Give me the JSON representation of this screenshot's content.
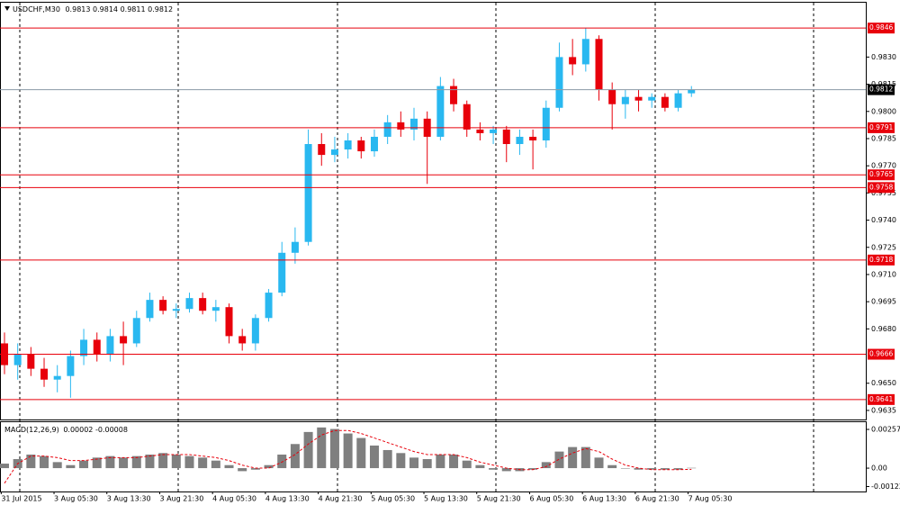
{
  "chart_data": [
    {
      "type": "candlestick",
      "symbol": "USDCHF,M30",
      "header_values": [
        0.9813,
        0.9814,
        0.9811,
        0.9812
      ],
      "bull_color": "#29b8f0",
      "bear_color": "#e8000b",
      "open": [
        0.9672,
        0.966,
        0.9666,
        0.9658,
        0.9652,
        0.9654,
        0.9665,
        0.9674,
        0.9666,
        0.9676,
        0.9672,
        0.9686,
        0.9696,
        0.969,
        0.9691,
        0.9697,
        0.969,
        0.9692,
        0.9676,
        0.9672,
        0.9686,
        0.97,
        0.9722,
        0.9728,
        0.9782,
        0.9776,
        0.9779,
        0.9784,
        0.9778,
        0.9786,
        0.9794,
        0.979,
        0.9796,
        0.9786,
        0.9814,
        0.9804,
        0.979,
        0.9788,
        0.979,
        0.9782,
        0.9786,
        0.9784,
        0.9802,
        0.983,
        0.9826,
        0.984,
        0.9812,
        0.9804,
        0.9808,
        0.9806,
        0.9808,
        0.9802,
        0.981
      ],
      "high": [
        0.9678,
        0.9672,
        0.967,
        0.9664,
        0.966,
        0.9668,
        0.968,
        0.9678,
        0.968,
        0.9684,
        0.969,
        0.97,
        0.9698,
        0.9694,
        0.97,
        0.97,
        0.9696,
        0.9694,
        0.968,
        0.9688,
        0.9702,
        0.9728,
        0.9736,
        0.979,
        0.9788,
        0.9786,
        0.9788,
        0.9786,
        0.979,
        0.9798,
        0.98,
        0.9802,
        0.98,
        0.9819,
        0.9818,
        0.9806,
        0.9794,
        0.9792,
        0.9792,
        0.979,
        0.979,
        0.9806,
        0.9838,
        0.984,
        0.9846,
        0.9842,
        0.9816,
        0.9812,
        0.9812,
        0.981,
        0.981,
        0.9812,
        0.9814
      ],
      "low": [
        0.9655,
        0.9652,
        0.9654,
        0.9648,
        0.9645,
        0.9642,
        0.966,
        0.9662,
        0.9662,
        0.966,
        0.967,
        0.9684,
        0.9688,
        0.9686,
        0.9689,
        0.9688,
        0.9684,
        0.9672,
        0.9668,
        0.9668,
        0.9684,
        0.9698,
        0.9716,
        0.9726,
        0.977,
        0.9772,
        0.9774,
        0.9774,
        0.9775,
        0.9782,
        0.9786,
        0.9784,
        0.976,
        0.9784,
        0.98,
        0.9786,
        0.9784,
        0.9782,
        0.9772,
        0.9776,
        0.9768,
        0.978,
        0.98,
        0.982,
        0.9822,
        0.9806,
        0.979,
        0.9796,
        0.98,
        0.9802,
        0.98,
        0.98,
        0.9808
      ],
      "close": [
        0.966,
        0.9666,
        0.9658,
        0.9652,
        0.9654,
        0.9665,
        0.9674,
        0.9666,
        0.9676,
        0.9672,
        0.9686,
        0.9696,
        0.969,
        0.9691,
        0.9697,
        0.969,
        0.9692,
        0.9676,
        0.9672,
        0.9686,
        0.97,
        0.9722,
        0.9728,
        0.9782,
        0.9776,
        0.9779,
        0.9784,
        0.9778,
        0.9786,
        0.9794,
        0.979,
        0.9796,
        0.9786,
        0.9814,
        0.9804,
        0.979,
        0.9788,
        0.979,
        0.9782,
        0.9786,
        0.9784,
        0.9802,
        0.983,
        0.9826,
        0.984,
        0.9812,
        0.9804,
        0.9808,
        0.9806,
        0.9808,
        0.9802,
        0.981,
        0.9812
      ],
      "levels": [
        0.9846,
        0.9791,
        0.9765,
        0.9758,
        0.9718,
        0.9666,
        0.9641
      ],
      "level_color": "#e8000b",
      "current_price": 0.9812,
      "ylim": [
        0.963,
        0.986
      ],
      "yticks": [
        {
          "value": 0.983,
          "label": "0.9830"
        },
        {
          "value": 0.9815,
          "label": "0.9815"
        },
        {
          "value": 0.98,
          "label": "0.9800"
        },
        {
          "value": 0.9785,
          "label": "0.9785"
        },
        {
          "value": 0.977,
          "label": "0.9770"
        },
        {
          "value": 0.9755,
          "label": "0.9755"
        },
        {
          "value": 0.974,
          "label": "0.9740"
        },
        {
          "value": 0.9725,
          "label": "0.9725"
        },
        {
          "value": 0.971,
          "label": "0.9710"
        },
        {
          "value": 0.9695,
          "label": "0.9695"
        },
        {
          "value": 0.968,
          "label": "0.9680"
        },
        {
          "value": 0.965,
          "label": "0.9650"
        },
        {
          "value": 0.9635,
          "label": "0.9635"
        }
      ],
      "xlim": [
        -0.34,
        65.2
      ],
      "xticks": [
        {
          "value": -0.25,
          "label": "31 Jul 2015"
        },
        {
          "value": 3.75,
          "label": "3 Aug 05:30"
        },
        {
          "value": 7.75,
          "label": "3 Aug 13:30"
        },
        {
          "value": 11.75,
          "label": "3 Aug 21:30"
        },
        {
          "value": 15.75,
          "label": "4 Aug 05:30"
        },
        {
          "value": 19.75,
          "label": "4 Aug 13:30"
        },
        {
          "value": 23.75,
          "label": "4 Aug 21:30"
        },
        {
          "value": 27.75,
          "label": "5 Aug 05:30"
        },
        {
          "value": 31.75,
          "label": "5 Aug 13:30"
        },
        {
          "value": 35.75,
          "label": "5 Aug 21:30"
        },
        {
          "value": 39.75,
          "label": "6 Aug 05:30"
        },
        {
          "value": 43.75,
          "label": "6 Aug 13:30"
        },
        {
          "value": 47.75,
          "label": "6 Aug 21:30"
        },
        {
          "value": 51.75,
          "label": "7 Aug 05:30"
        }
      ]
    },
    {
      "type": "macd",
      "name": "MACD(12,26,9)",
      "header_values": [
        2e-05,
        -8e-05
      ],
      "histogram": {
        "color": "#7f7f7f",
        "values": [
          0.0003,
          0.0006,
          0.0009,
          0.0008,
          0.0004,
          0.0002,
          0.0005,
          0.0007,
          0.0008,
          0.0007,
          0.0008,
          0.0009,
          0.001,
          0.0009,
          0.0008,
          0.0007,
          0.0005,
          0.0002,
          -0.0002,
          -0.0001,
          0.0002,
          0.0009,
          0.0016,
          0.0024,
          0.0027,
          0.0026,
          0.0023,
          0.002,
          0.0015,
          0.0012,
          0.001,
          0.0007,
          0.0006,
          0.0009,
          0.0009,
          0.0005,
          0.0002,
          -0.0001,
          -0.0002,
          -0.0002,
          -0.0001,
          0.0004,
          0.0011,
          0.0014,
          0.0014,
          0.0007,
          0.0002,
          0.0,
          -0.0001,
          -0.0001,
          -0.0001,
          -0.0001,
          2e-05
        ]
      },
      "signal": {
        "color": "#e8000b",
        "values": [
          -0.001,
          0.0003,
          0.0008,
          0.0008,
          0.0007,
          0.0005,
          0.0005,
          0.0006,
          0.0007,
          0.0007,
          0.0007,
          0.0008,
          0.0009,
          0.0009,
          0.0009,
          0.0008,
          0.0007,
          0.0005,
          0.0002,
          0.0,
          0.0,
          0.0004,
          0.0009,
          0.0016,
          0.0022,
          0.0025,
          0.0025,
          0.0023,
          0.002,
          0.0017,
          0.0014,
          0.0011,
          0.0009,
          0.0009,
          0.0009,
          0.0007,
          0.0004,
          0.0002,
          0.0,
          -0.0001,
          -0.0001,
          0.0001,
          0.0006,
          0.001,
          0.0013,
          0.0011,
          0.0006,
          0.0002,
          0.0,
          -0.0001,
          -0.0001,
          -0.0001,
          -8e-05
        ]
      },
      "ylim": [
        -0.00155,
        0.00305
      ],
      "yticks": [
        0.00257,
        {
          "value": 0,
          "label": "0.00"
        },
        -0.00122
      ]
    }
  ]
}
